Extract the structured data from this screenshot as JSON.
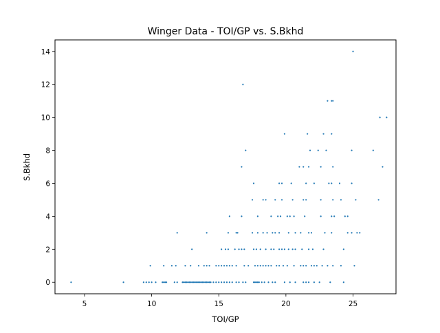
{
  "chart_data": {
    "type": "scatter",
    "title": "Winger Data - TOI/GP vs. S.Bkhd",
    "xlabel": "TOI/GP",
    "ylabel": "S.Bkhd",
    "xlim": [
      2.8,
      28.2
    ],
    "ylim": [
      -0.7,
      14.7
    ],
    "xticks": [
      5,
      10,
      15,
      20,
      25
    ],
    "yticks": [
      0,
      2,
      4,
      6,
      8,
      10,
      12,
      14
    ],
    "grid": false,
    "legend": "none",
    "marker_color": "#1f77b4",
    "series": [
      {
        "points": [
          [
            4.0,
            0
          ],
          [
            7.9,
            0
          ],
          [
            9.4,
            0
          ],
          [
            9.6,
            0
          ],
          [
            9.8,
            0
          ],
          [
            10.0,
            0
          ],
          [
            10.3,
            0
          ],
          [
            10.8,
            0
          ],
          [
            10.9,
            0
          ],
          [
            11.0,
            0
          ],
          [
            11.1,
            0
          ],
          [
            11.7,
            0
          ],
          [
            11.9,
            0
          ],
          [
            12.3,
            0
          ],
          [
            12.4,
            0
          ],
          [
            12.5,
            0
          ],
          [
            12.6,
            0
          ],
          [
            12.7,
            0
          ],
          [
            12.8,
            0
          ],
          [
            12.9,
            0
          ],
          [
            13.0,
            0
          ],
          [
            13.1,
            0
          ],
          [
            13.2,
            0
          ],
          [
            13.3,
            0
          ],
          [
            13.4,
            0
          ],
          [
            13.5,
            0
          ],
          [
            13.6,
            0
          ],
          [
            13.7,
            0
          ],
          [
            13.8,
            0
          ],
          [
            13.9,
            0
          ],
          [
            14.0,
            0
          ],
          [
            14.1,
            0
          ],
          [
            14.2,
            0
          ],
          [
            14.3,
            0
          ],
          [
            14.4,
            0
          ],
          [
            14.6,
            0
          ],
          [
            14.8,
            0
          ],
          [
            15.0,
            0
          ],
          [
            15.2,
            0
          ],
          [
            15.4,
            0
          ],
          [
            15.6,
            0
          ],
          [
            15.8,
            0
          ],
          [
            16.0,
            0
          ],
          [
            16.3,
            0
          ],
          [
            16.5,
            0
          ],
          [
            16.8,
            0
          ],
          [
            17.0,
            0
          ],
          [
            17.6,
            0
          ],
          [
            17.7,
            0
          ],
          [
            17.8,
            0
          ],
          [
            17.9,
            0
          ],
          [
            18.0,
            0
          ],
          [
            18.2,
            0
          ],
          [
            18.4,
            0
          ],
          [
            18.7,
            0
          ],
          [
            19.0,
            0
          ],
          [
            19.2,
            0
          ],
          [
            19.9,
            0
          ],
          [
            20.3,
            0
          ],
          [
            20.7,
            0
          ],
          [
            21.3,
            0
          ],
          [
            21.5,
            0
          ],
          [
            21.7,
            0
          ],
          [
            22.1,
            0
          ],
          [
            22.5,
            0
          ],
          [
            23.3,
            0
          ],
          [
            24.3,
            0
          ],
          [
            9.9,
            1
          ],
          [
            10.9,
            1
          ],
          [
            11.5,
            1
          ],
          [
            11.8,
            1
          ],
          [
            12.5,
            1
          ],
          [
            12.9,
            1
          ],
          [
            13.5,
            1
          ],
          [
            13.9,
            1
          ],
          [
            14.1,
            1
          ],
          [
            14.3,
            1
          ],
          [
            14.8,
            1
          ],
          [
            15.0,
            1
          ],
          [
            15.2,
            1
          ],
          [
            15.4,
            1
          ],
          [
            15.6,
            1
          ],
          [
            15.8,
            1
          ],
          [
            16.0,
            1
          ],
          [
            16.3,
            1
          ],
          [
            16.9,
            1
          ],
          [
            17.2,
            1
          ],
          [
            17.7,
            1
          ],
          [
            17.9,
            1
          ],
          [
            18.1,
            1
          ],
          [
            18.3,
            1
          ],
          [
            18.5,
            1
          ],
          [
            18.7,
            1
          ],
          [
            18.9,
            1
          ],
          [
            19.3,
            1
          ],
          [
            19.5,
            1
          ],
          [
            19.8,
            1
          ],
          [
            20.1,
            1
          ],
          [
            20.6,
            1
          ],
          [
            21.1,
            1
          ],
          [
            21.3,
            1
          ],
          [
            21.5,
            1
          ],
          [
            21.9,
            1
          ],
          [
            22.1,
            1
          ],
          [
            22.3,
            1
          ],
          [
            22.7,
            1
          ],
          [
            23.1,
            1
          ],
          [
            23.5,
            1
          ],
          [
            24.1,
            1
          ],
          [
            25.1,
            1
          ],
          [
            13.0,
            2
          ],
          [
            15.2,
            2
          ],
          [
            15.5,
            2
          ],
          [
            15.7,
            2
          ],
          [
            16.2,
            2
          ],
          [
            16.5,
            2
          ],
          [
            16.7,
            2
          ],
          [
            16.9,
            2
          ],
          [
            17.6,
            2
          ],
          [
            17.8,
            2
          ],
          [
            18.1,
            2
          ],
          [
            18.5,
            2
          ],
          [
            18.9,
            2
          ],
          [
            19.1,
            2
          ],
          [
            19.5,
            2
          ],
          [
            19.7,
            2
          ],
          [
            19.9,
            2
          ],
          [
            20.2,
            2
          ],
          [
            20.5,
            2
          ],
          [
            20.7,
            2
          ],
          [
            21.2,
            2
          ],
          [
            21.7,
            2
          ],
          [
            22.0,
            2
          ],
          [
            22.8,
            2
          ],
          [
            24.3,
            2
          ],
          [
            11.9,
            3
          ],
          [
            14.1,
            3
          ],
          [
            15.7,
            3
          ],
          [
            16.3,
            3
          ],
          [
            16.4,
            3
          ],
          [
            17.5,
            3
          ],
          [
            17.9,
            3
          ],
          [
            18.3,
            3
          ],
          [
            18.6,
            3
          ],
          [
            19.0,
            3
          ],
          [
            19.2,
            3
          ],
          [
            19.5,
            3
          ],
          [
            20.2,
            3
          ],
          [
            20.7,
            3
          ],
          [
            21.1,
            3
          ],
          [
            21.7,
            3
          ],
          [
            21.9,
            3
          ],
          [
            22.9,
            3
          ],
          [
            23.4,
            3
          ],
          [
            24.6,
            3
          ],
          [
            24.9,
            3
          ],
          [
            25.3,
            3
          ],
          [
            25.5,
            3
          ],
          [
            15.8,
            4
          ],
          [
            16.7,
            4
          ],
          [
            17.9,
            4
          ],
          [
            18.9,
            4
          ],
          [
            19.4,
            4
          ],
          [
            19.6,
            4
          ],
          [
            20.1,
            4
          ],
          [
            20.3,
            4
          ],
          [
            20.6,
            4
          ],
          [
            21.4,
            4
          ],
          [
            22.6,
            4
          ],
          [
            23.4,
            4
          ],
          [
            23.6,
            4
          ],
          [
            24.4,
            4
          ],
          [
            24.6,
            4
          ],
          [
            17.5,
            5
          ],
          [
            18.3,
            5
          ],
          [
            18.5,
            5
          ],
          [
            19.2,
            5
          ],
          [
            19.7,
            5
          ],
          [
            20.5,
            5
          ],
          [
            21.3,
            5
          ],
          [
            21.5,
            5
          ],
          [
            22.6,
            5
          ],
          [
            23.5,
            5
          ],
          [
            24.1,
            5
          ],
          [
            25.2,
            5
          ],
          [
            26.9,
            5
          ],
          [
            17.6,
            6
          ],
          [
            19.5,
            6
          ],
          [
            19.7,
            6
          ],
          [
            20.4,
            6
          ],
          [
            21.5,
            6
          ],
          [
            22.1,
            6
          ],
          [
            23.2,
            6
          ],
          [
            23.4,
            6
          ],
          [
            24.0,
            6
          ],
          [
            24.9,
            6
          ],
          [
            16.7,
            7
          ],
          [
            21.0,
            7
          ],
          [
            21.3,
            7
          ],
          [
            21.7,
            7
          ],
          [
            22.6,
            7
          ],
          [
            23.5,
            7
          ],
          [
            27.2,
            7
          ],
          [
            17.0,
            8
          ],
          [
            21.8,
            8
          ],
          [
            22.4,
            8
          ],
          [
            23.0,
            8
          ],
          [
            24.9,
            8
          ],
          [
            26.5,
            8
          ],
          [
            19.9,
            9
          ],
          [
            21.6,
            9
          ],
          [
            22.8,
            9
          ],
          [
            23.4,
            9
          ],
          [
            27.0,
            10
          ],
          [
            27.5,
            10
          ],
          [
            23.1,
            11
          ],
          [
            23.4,
            11
          ],
          [
            23.5,
            11
          ],
          [
            16.8,
            12
          ],
          [
            25.0,
            14
          ]
        ]
      }
    ]
  }
}
